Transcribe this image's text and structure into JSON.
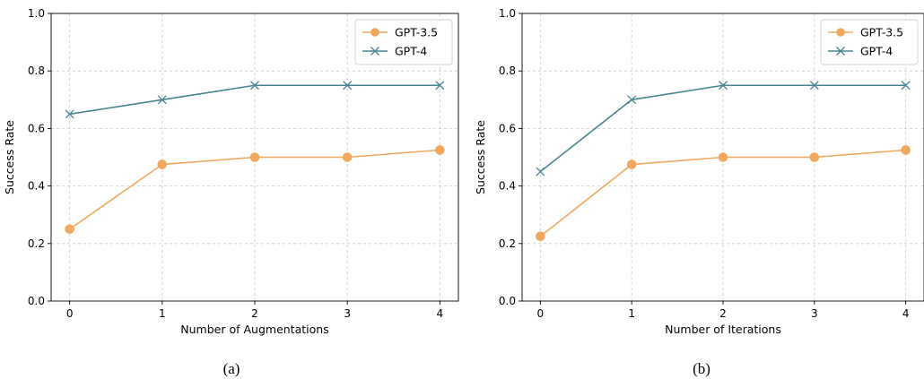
{
  "chart_data": [
    {
      "type": "line",
      "caption": "(a)",
      "xlabel": "Number of Augmentations",
      "ylabel": "Success Rate",
      "x": [
        0,
        1,
        2,
        3,
        4
      ],
      "xticks": [
        "0",
        "1",
        "2",
        "3",
        "4"
      ],
      "yticks": [
        "0.0",
        "0.2",
        "0.4",
        "0.6",
        "0.8",
        "1.0"
      ],
      "ylim": [
        0,
        1
      ],
      "grid": true,
      "legend_position": "top-right",
      "series": [
        {
          "name": "GPT-3.5",
          "marker": "circle",
          "color": "#f0a85f",
          "values": [
            0.25,
            0.475,
            0.5,
            0.5,
            0.525
          ]
        },
        {
          "name": "GPT-4",
          "marker": "x",
          "color": "#478592",
          "values": [
            0.65,
            0.7,
            0.75,
            0.75,
            0.75
          ]
        }
      ]
    },
    {
      "type": "line",
      "caption": "(b)",
      "xlabel": "Number of Iterations",
      "ylabel": "Success Rate",
      "x": [
        0,
        1,
        2,
        3,
        4
      ],
      "xticks": [
        "0",
        "1",
        "2",
        "3",
        "4"
      ],
      "yticks": [
        "0.0",
        "0.2",
        "0.4",
        "0.6",
        "0.8",
        "1.0"
      ],
      "ylim": [
        0,
        1
      ],
      "grid": true,
      "legend_position": "top-right",
      "series": [
        {
          "name": "GPT-3.5",
          "marker": "circle",
          "color": "#f0a85f",
          "values": [
            0.225,
            0.475,
            0.5,
            0.5,
            0.525
          ]
        },
        {
          "name": "GPT-4",
          "marker": "x",
          "color": "#478592",
          "values": [
            0.45,
            0.7,
            0.75,
            0.75,
            0.75
          ]
        }
      ]
    }
  ]
}
